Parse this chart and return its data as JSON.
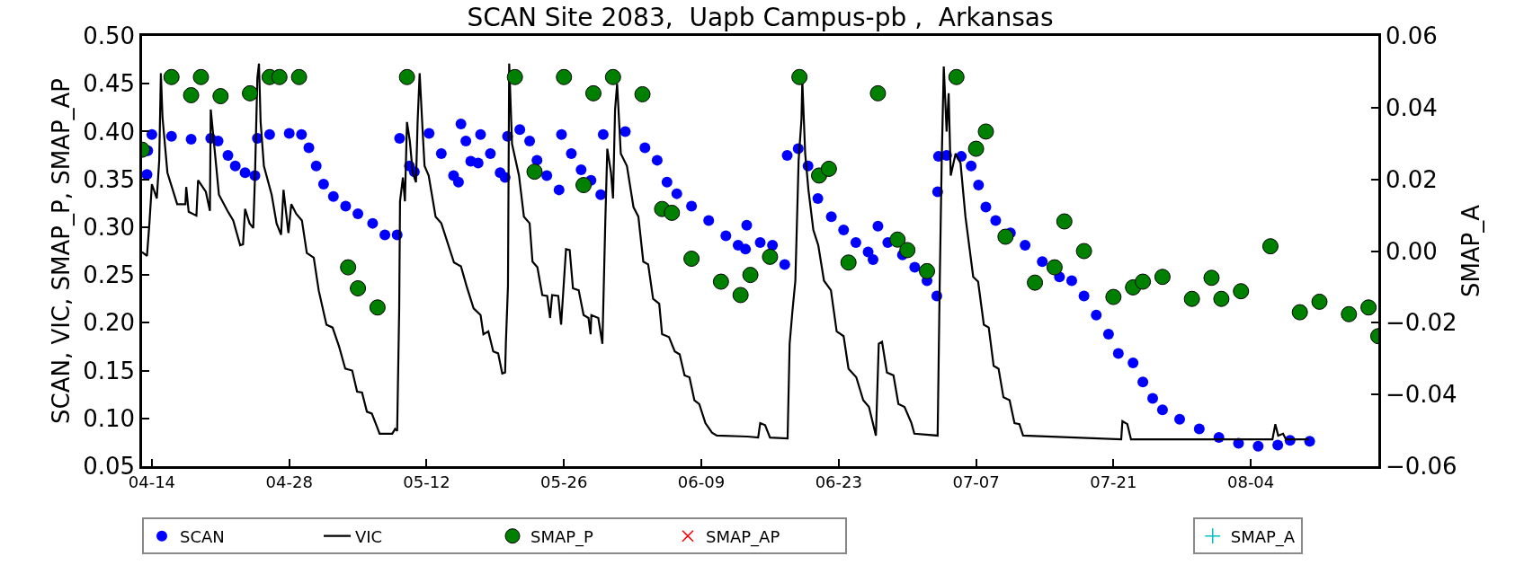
{
  "chart_data": {
    "type": "scatter",
    "title": "SCAN Site 2083,  Uapb Campus-pb ,  Arkansas",
    "ylabel": "SCAN, VIC, SMAP_P, SMAP_AP",
    "y2label": "SMAP_A",
    "xlim": [
      "--04-13",
      "--08-17"
    ],
    "xticks": [
      {
        "value": "--04-14",
        "label": "04-14"
      },
      {
        "value": "--04-28",
        "label": "04-28"
      },
      {
        "value": "--05-12",
        "label": "05-12"
      },
      {
        "value": "--05-26",
        "label": "05-26"
      },
      {
        "value": "--06-09",
        "label": "06-09"
      },
      {
        "value": "--06-23",
        "label": "06-23"
      },
      {
        "value": "--07-07",
        "label": "07-07"
      },
      {
        "value": "--07-21",
        "label": "07-21"
      },
      {
        "value": "--08-04",
        "label": "08-04"
      }
    ],
    "ylim": [
      0.05,
      0.5
    ],
    "yticks": [
      {
        "value": 0.05,
        "label": "0.05"
      },
      {
        "value": 0.1,
        "label": "0.10"
      },
      {
        "value": 0.15,
        "label": "0.15"
      },
      {
        "value": 0.2,
        "label": "0.20"
      },
      {
        "value": 0.25,
        "label": "0.25"
      },
      {
        "value": 0.3,
        "label": "0.30"
      },
      {
        "value": 0.35,
        "label": "0.35"
      },
      {
        "value": 0.4,
        "label": "0.40"
      },
      {
        "value": 0.45,
        "label": "0.45"
      },
      {
        "value": 0.5,
        "label": "0.50"
      }
    ],
    "y2lim": [
      -0.06,
      0.06
    ],
    "y2ticks": [
      {
        "value": -0.06,
        "label": "−0.06"
      },
      {
        "value": -0.04,
        "label": "−0.04"
      },
      {
        "value": -0.02,
        "label": "−0.02"
      },
      {
        "value": 0,
        "label": "0.00"
      },
      {
        "value": 0.02,
        "label": "0.02"
      },
      {
        "value": 0.04,
        "label": "0.04"
      },
      {
        "value": 0.06,
        "label": "0.06"
      }
    ],
    "legend": "bottom",
    "series": [
      {
        "name": "SCAN",
        "marker": "circle",
        "color": "#0000ff",
        "x": [
          "--04-13T12:00",
          "--04-13T14:00",
          "--04-14T00:00",
          "--04-16T00:00",
          "--04-18T00:00",
          "--04-20T00:00",
          "--04-20T18:00",
          "--04-21T18:00",
          "--04-22T12:00",
          "--04-23T12:00",
          "--04-24T12:00",
          "--04-24T18:00",
          "--04-26T00:00",
          "--04-28T00:00",
          "--04-29T06:00",
          "--04-30T00:00",
          "--04-30T18:00",
          "--05-01T12:00",
          "--05-02T12:00",
          "--05-03T18:00",
          "--05-05T00:00",
          "--05-06T12:00",
          "--05-07T18:00",
          "--05-09T00:00",
          "--05-09T06:00",
          "--05-10T06:00",
          "--05-10T18:00",
          "--05-12T06:00",
          "--05-13T12:00",
          "--05-14T18:00",
          "--05-15T06:00",
          "--05-15T12:00",
          "--05-16T00:00",
          "--05-16T12:00",
          "--05-17T06:00",
          "--05-17T12:00",
          "--05-18T12:00",
          "--05-19T12:00",
          "--05-20T00:00",
          "--05-20T06:00",
          "--05-21T12:00",
          "--05-22T12:00",
          "--05-23T06:00",
          "--05-24T06:00",
          "--05-25T12:00",
          "--05-25T18:00",
          "--05-26T18:00",
          "--05-27T18:00",
          "--05-28T18:00",
          "--05-29T18:00",
          "--05-30T00:00",
          "--06-01T06:00",
          "--06-03T06:00",
          "--06-04T12:00",
          "--06-05T12:00",
          "--06-06T12:00",
          "--06-08T00:00",
          "--06-09T18:00",
          "--06-11T12:00",
          "--06-12T18:00",
          "--06-13T12:00",
          "--06-13T15:00",
          "--06-15T00:00",
          "--06-16T06:00",
          "--06-17T12:00",
          "--06-17T18:00",
          "--06-18T21:00",
          "--06-19T21:00",
          "--06-20T21:00",
          "--06-22T06:00",
          "--06-23T12:00",
          "--06-24T18:00",
          "--06-26T00:00",
          "--06-26T12:00",
          "--06-27T00:00",
          "--06-28T00:00",
          "--06-29T12:00",
          "--06-30T18:00",
          "--07-02T00:00",
          "--07-03T00:00",
          "--07-03T02:00",
          "--07-03T04:00",
          "--07-04T00:00",
          "--07-05T12:00",
          "--07-06T12:00",
          "--07-07T06:00",
          "--07-08T00:00",
          "--07-09T00:00",
          "--07-10T12:00",
          "--07-12T00:00",
          "--07-13T18:00",
          "--07-15T12:00",
          "--07-16T18:00",
          "--07-18T00:00",
          "--07-19T06:00",
          "--07-20T12:00",
          "--07-21T12:00",
          "--07-23T00:00",
          "--07-24T00:00",
          "--07-25T00:00",
          "--07-26T00:00",
          "--07-27T18:00",
          "--07-29T18:00",
          "--07-31T18:00",
          "--08-02T18:00",
          "--08-04T18:00",
          "--08-06T18:00",
          "--08-08T00:00",
          "--08-10T00:00"
        ],
        "values": [
          0.355,
          0.38,
          0.397,
          0.395,
          0.392,
          0.393,
          0.39,
          0.375,
          0.364,
          0.357,
          0.354,
          0.393,
          0.397,
          0.398,
          0.397,
          0.383,
          0.364,
          0.345,
          0.332,
          0.322,
          0.314,
          0.304,
          0.292,
          0.292,
          0.393,
          0.364,
          0.358,
          0.398,
          0.377,
          0.354,
          0.347,
          0.408,
          0.39,
          0.369,
          0.367,
          0.397,
          0.377,
          0.357,
          0.352,
          0.395,
          0.402,
          0.39,
          0.37,
          0.354,
          0.339,
          0.397,
          0.377,
          0.36,
          0.349,
          0.334,
          0.397,
          0.4,
          0.383,
          0.37,
          0.347,
          0.335,
          0.322,
          0.307,
          0.291,
          0.281,
          0.277,
          0.302,
          0.284,
          0.281,
          0.261,
          0.375,
          0.382,
          0.364,
          0.33,
          0.311,
          0.297,
          0.284,
          0.274,
          0.266,
          0.301,
          0.284,
          0.271,
          0.258,
          0.244,
          0.228,
          0.337,
          0.374,
          0.375,
          0.374,
          0.364,
          0.344,
          0.321,
          0.307,
          0.294,
          0.281,
          0.264,
          0.248,
          0.244,
          0.228,
          0.208,
          0.188,
          0.168,
          0.158,
          0.138,
          0.121,
          0.109,
          0.099,
          0.089,
          0.08,
          0.074,
          0.071,
          0.072,
          0.077,
          0.076
        ]
      },
      {
        "name": "VIC",
        "type": "line",
        "marker": "none",
        "line_style": "solid",
        "color": "#000000",
        "x": [
          "--04-13T00:00",
          "--04-13T12:00",
          "--04-13T18:00",
          "--04-14T00:00",
          "--04-14T12:00",
          "--04-14T18:00",
          "--04-14T22:00",
          "--04-15T02:00",
          "--04-15T14:00",
          "--04-16T14:00",
          "--04-17T10:00",
          "--04-17T12:00",
          "--04-17T18:00",
          "--04-18T13:00",
          "--04-18T17:00",
          "--04-19T12:00",
          "--04-19T22:00",
          "--04-20T00:00",
          "--04-20T12:00",
          "--04-20T20:00",
          "--04-21T17:00",
          "--04-22T07:00",
          "--04-23T00:00",
          "--04-23T07:00",
          "--04-23T12:00",
          "--04-23T23:00",
          "--04-24T08:00",
          "--04-24T12:00",
          "--04-24T18:00",
          "--04-24T22:00",
          "--04-25T02:00",
          "--04-25T10:00",
          "--04-26T05:00",
          "--04-26T17:00",
          "--04-27T04:00",
          "--04-27T10:00",
          "--04-27T22:00",
          "--04-28T05:00",
          "--04-28T17:00",
          "--04-29T07:00",
          "--04-29T19:00",
          "--04-30T12:00",
          "--05-01T00:00",
          "--05-01T19:00",
          "--05-02T10:00",
          "--05-03T02:00",
          "--05-03T17:00",
          "--05-04T10:00",
          "--05-04T22:00",
          "--05-05T10:00",
          "--05-05T22:00",
          "--05-06T10:00",
          "--05-06T22:00",
          "--05-07T05:00",
          "--05-08T12:00",
          "--05-08T19:00",
          "--05-09T00:00",
          "--05-09T05:00",
          "--05-09T07:00",
          "--05-09T14:00",
          "--05-09T19:00",
          "--05-10T00:00",
          "--05-10T07:00",
          "--05-10T14:00",
          "--05-10T22:00",
          "--05-11T02:00",
          "--05-11T07:00",
          "--05-11T14:00",
          "--05-11T19:00",
          "--05-12T05:00",
          "--05-12T22:00",
          "--05-13T12:00",
          "--05-14T19:00",
          "--05-15T12:00",
          "--05-16T02:00",
          "--05-16T19:00",
          "--05-17T12:00",
          "--05-17T19:00",
          "--05-18T07:00",
          "--05-18T19:00",
          "--05-19T07:00",
          "--05-19T17:00",
          "--05-20T00:00",
          "--05-20T02:00",
          "--05-20T07:00",
          "--05-20T10:00",
          "--05-20T17:00",
          "--05-21T10:00",
          "--05-21T22:00",
          "--05-22T12:00",
          "--05-22T19:00",
          "--05-23T07:00",
          "--05-23T19:00",
          "--05-24T07:00",
          "--05-24T14:00",
          "--05-24T19:00",
          "--05-25T10:00",
          "--05-25T17:00",
          "--05-26T05:00",
          "--05-26T14:00",
          "--05-26T22:00",
          "--05-27T12:00",
          "--05-28T00:00",
          "--05-28T12:00",
          "--05-28T17:00",
          "--05-28T19:00",
          "--05-29T12:00",
          "--05-29T22:00",
          "--05-30T05:00",
          "--05-30T10:00",
          "--05-30T19:00",
          "--05-31T00:00",
          "--05-31T05:00",
          "--05-31T10:00",
          "--05-31T19:00",
          "--06-01T10:00",
          "--06-02T02:00",
          "--06-02T14:00",
          "--06-03T02:00",
          "--06-03T14:00",
          "--06-04T02:00",
          "--06-04T17:00",
          "--06-05T00:00",
          "--06-05T17:00",
          "--06-06T07:00",
          "--06-06T19:00",
          "--06-07T07:00",
          "--06-07T19:00",
          "--06-08T07:00",
          "--06-08T19:00",
          "--06-09T10:00",
          "--06-10T02:00",
          "--06-10T14:00",
          "--06-13T17:00",
          "--06-14T19:00",
          "--06-15T00:00",
          "--06-15T12:00",
          "--06-16T00:00",
          "--06-17T19:00",
          "--06-18T00:00",
          "--06-18T07:00",
          "--06-18T14:00",
          "--06-18T22:00",
          "--06-19T05:00",
          "--06-19T07:00",
          "--06-19T14:00",
          "--06-19T22:00",
          "--06-20T10:00",
          "--06-20T22:00",
          "--06-21T12:00",
          "--06-22T05:00",
          "--06-22T19:00",
          "--06-23T12:00",
          "--06-24T00:00",
          "--06-24T19:00",
          "--06-25T12:00",
          "--06-26T02:00",
          "--06-26T19:00",
          "--06-27T02:00",
          "--06-27T10:00",
          "--06-27T22:00",
          "--06-28T14:00",
          "--06-29T02:00",
          "--06-29T17:00",
          "--06-30T10:00",
          "--06-30T17:00",
          "--07-03T02:00",
          "--07-03T07:00",
          "--07-03T12:00",
          "--07-03T17:00",
          "--07-04T00:00",
          "--07-04T05:00",
          "--07-04T10:00",
          "--07-04T22:00",
          "--07-05T10:00",
          "--07-05T22:00",
          "--07-06T17:00",
          "--07-07T05:00",
          "--07-07T19:00",
          "--07-08T07:00",
          "--07-08T19:00",
          "--07-09T07:00",
          "--07-09T19:00",
          "--07-10T10:00",
          "--07-10T22:00",
          "--07-11T10:00",
          "--07-11T19:00",
          "--07-21T19:00",
          "--07-21T22:00",
          "--07-22T10:00",
          "--07-22T19:00",
          "--08-06T05:00",
          "--08-06T12:00",
          "--08-06T19:00",
          "--08-07T07:00",
          "--08-07T14:00",
          "--08-09T22:00"
        ],
        "values": [
          0.274,
          0.27,
          0.304,
          0.345,
          0.33,
          0.37,
          0.461,
          0.415,
          0.357,
          0.324,
          0.324,
          0.342,
          0.316,
          0.312,
          0.349,
          0.337,
          0.317,
          0.423,
          0.37,
          0.334,
          0.317,
          0.307,
          0.281,
          0.282,
          0.319,
          0.304,
          0.299,
          0.35,
          0.456,
          0.471,
          0.41,
          0.364,
          0.334,
          0.304,
          0.292,
          0.339,
          0.294,
          0.324,
          0.314,
          0.307,
          0.273,
          0.268,
          0.234,
          0.198,
          0.195,
          0.175,
          0.152,
          0.15,
          0.128,
          0.127,
          0.107,
          0.105,
          0.092,
          0.084,
          0.084,
          0.089,
          0.087,
          0.215,
          0.327,
          0.352,
          0.327,
          0.41,
          0.39,
          0.357,
          0.347,
          0.41,
          0.461,
          0.403,
          0.364,
          0.354,
          0.311,
          0.304,
          0.263,
          0.259,
          0.238,
          0.215,
          0.208,
          0.188,
          0.191,
          0.17,
          0.168,
          0.147,
          0.148,
          0.18,
          0.238,
          0.471,
          0.387,
          0.354,
          0.311,
          0.304,
          0.264,
          0.258,
          0.229,
          0.228,
          0.205,
          0.229,
          0.228,
          0.198,
          0.277,
          0.276,
          0.236,
          0.234,
          0.208,
          0.205,
          0.188,
          0.208,
          0.205,
          0.178,
          0.304,
          0.382,
          0.357,
          0.33,
          0.423,
          0.45,
          0.377,
          0.364,
          0.321,
          0.311,
          0.264,
          0.261,
          0.225,
          0.22,
          0.188,
          0.185,
          0.17,
          0.167,
          0.145,
          0.143,
          0.119,
          0.115,
          0.095,
          0.085,
          0.082,
          0.081,
          0.08,
          0.095,
          0.093,
          0.08,
          0.079,
          0.178,
          0.213,
          0.244,
          0.37,
          0.413,
          0.453,
          0.377,
          0.339,
          0.297,
          0.281,
          0.244,
          0.234,
          0.191,
          0.186,
          0.152,
          0.143,
          0.119,
          0.112,
          0.082,
          0.178,
          0.18,
          0.148,
          0.145,
          0.115,
          0.112,
          0.095,
          0.084,
          0.082,
          0.238,
          0.37,
          0.468,
          0.4,
          0.44,
          0.354,
          0.377,
          0.367,
          0.311,
          0.248,
          0.243,
          0.198,
          0.195,
          0.155,
          0.152,
          0.122,
          0.119,
          0.095,
          0.094,
          0.082,
          0.078,
          0.097,
          0.094,
          0.078,
          0.078,
          0.094,
          0.082,
          0.084,
          0.078,
          0.078
        ]
      },
      {
        "name": "SMAP_P",
        "marker": "circle",
        "color": "#008000",
        "x": [
          "--04-13",
          "--04-16",
          "--04-18",
          "--04-19",
          "--04-21",
          "--04-24",
          "--04-26",
          "--04-27",
          "--04-29",
          "--05-04",
          "--05-05",
          "--05-07",
          "--05-10",
          "--05-21",
          "--05-23",
          "--05-26",
          "--05-28",
          "--05-29",
          "--05-31",
          "--06-03",
          "--06-05",
          "--06-06",
          "--06-08",
          "--06-11",
          "--06-13",
          "--06-14",
          "--06-16",
          "--06-19",
          "--06-21",
          "--06-22",
          "--06-24",
          "--06-27",
          "--06-29",
          "--06-30",
          "--07-02",
          "--07-05",
          "--07-07",
          "--07-08",
          "--07-10",
          "--07-13",
          "--07-15",
          "--07-16",
          "--07-18",
          "--07-21",
          "--07-23",
          "--07-24",
          "--07-26",
          "--07-29",
          "--07-31",
          "--08-01",
          "--08-03",
          "--08-06",
          "--08-09",
          "--08-11",
          "--08-14",
          "--08-16",
          "--08-17"
        ],
        "values": [
          0.381,
          0.457,
          0.438,
          0.457,
          0.437,
          0.44,
          0.457,
          0.457,
          0.457,
          0.258,
          0.236,
          0.216,
          0.457,
          0.457,
          0.358,
          0.457,
          0.344,
          0.44,
          0.457,
          0.439,
          0.319,
          0.315,
          0.267,
          0.243,
          0.229,
          0.25,
          0.269,
          0.457,
          0.354,
          0.361,
          0.263,
          0.44,
          0.287,
          0.276,
          0.254,
          0.457,
          0.382,
          0.4,
          0.29,
          0.242,
          0.258,
          0.306,
          0.275,
          0.227,
          0.237,
          0.243,
          0.248,
          0.225,
          0.247,
          0.225,
          0.233,
          0.28,
          0.211,
          0.222,
          0.209,
          0.216,
          0.186
        ]
      },
      {
        "name": "SMAP_AP",
        "marker": "x",
        "color": "#ff0000"
      },
      {
        "name": "SMAP_A",
        "marker": "cross",
        "color": "#00bfbf",
        "axis": "y2"
      }
    ]
  }
}
